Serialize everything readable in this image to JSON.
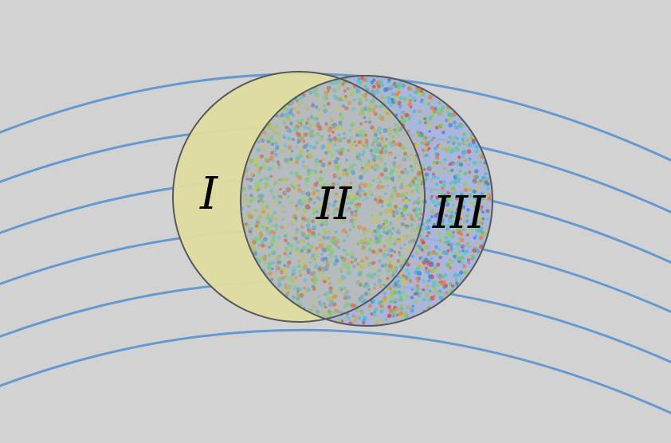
{
  "diagram": {
    "labels": {
      "region_one": "I",
      "region_two": "II",
      "region_three": "III"
    },
    "colors": {
      "background": "#d2d2d2",
      "field_lines": "#6699d0",
      "left_disc_fill": "#dedca0",
      "right_disc_fill": "#a6b2dc",
      "outline": "#585858",
      "label_text": "#050505"
    },
    "dot_palette": [
      "#49b8dc",
      "#68c95f",
      "#c8c454",
      "#e07b3f",
      "#d54b4b",
      "#3f7fd8",
      "#56c7b6",
      "#8bd15c",
      "#b6b25c",
      "#4fa0e0"
    ]
  }
}
